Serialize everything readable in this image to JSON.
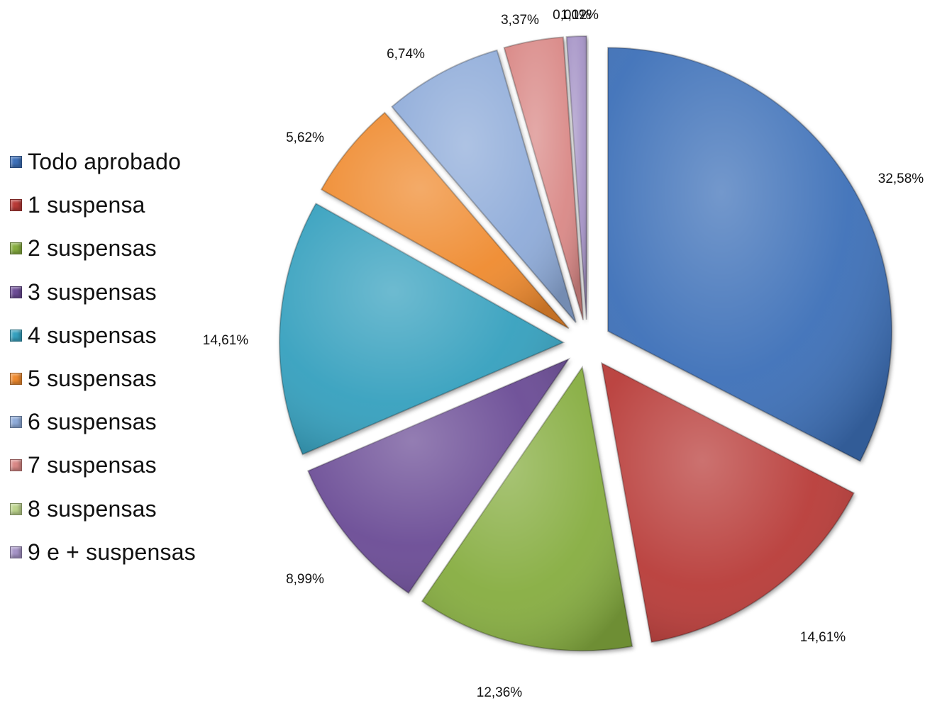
{
  "chart_data": {
    "type": "pie",
    "exploded": true,
    "legend_position": "left",
    "slices": [
      {
        "label": "Todo aprobado",
        "value": 32.58,
        "value_label": "32,58%",
        "color": "#3C6FB8"
      },
      {
        "label": "1 suspensa",
        "value": 14.61,
        "value_label": "14,61%",
        "color": "#B83A37"
      },
      {
        "label": "2 suspensas",
        "value": 12.36,
        "value_label": "12,36%",
        "color": "#86AD3F"
      },
      {
        "label": "3 suspensas",
        "value": 8.99,
        "value_label": "8,99%",
        "color": "#6B4B95"
      },
      {
        "label": "4 suspensas",
        "value": 14.61,
        "value_label": "14,61%",
        "color": "#35A0BE"
      },
      {
        "label": "5 suspensas",
        "value": 5.62,
        "value_label": "5,62%",
        "color": "#EF8A2E"
      },
      {
        "label": "6 suspensas",
        "value": 6.74,
        "value_label": "6,74%",
        "color": "#8EABD9"
      },
      {
        "label": "7 suspensas",
        "value": 3.37,
        "value_label": "3,37%",
        "color": "#D98886"
      },
      {
        "label": "8 suspensas",
        "value": 0.0,
        "value_label": "0,00%",
        "color": "#BCD48C"
      },
      {
        "label": "9 e + suspensas",
        "value": 1.12,
        "value_label": "1,12%",
        "color": "#A593C6"
      }
    ]
  }
}
